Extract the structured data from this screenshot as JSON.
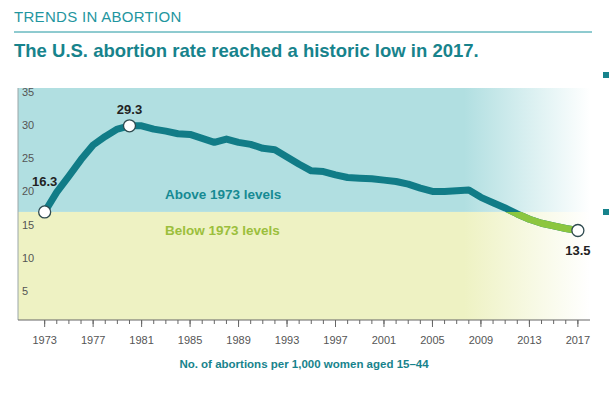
{
  "chart_data": {
    "type": "line",
    "header": "TRENDS IN ABORTION",
    "title": "The U.S. abortion rate reached a historic low in 2017.",
    "x_label": "No. of abortions per 1,000 women aged 15–44",
    "x": [
      1973,
      1974,
      1975,
      1976,
      1977,
      1978,
      1979,
      1980,
      1981,
      1982,
      1983,
      1984,
      1985,
      1986,
      1987,
      1988,
      1989,
      1990,
      1991,
      1992,
      1993,
      1994,
      1995,
      1996,
      1997,
      1998,
      1999,
      2000,
      2001,
      2002,
      2003,
      2004,
      2005,
      2006,
      2007,
      2008,
      2009,
      2010,
      2011,
      2012,
      2013,
      2014,
      2015,
      2016,
      2017
    ],
    "values": [
      16.3,
      19.3,
      21.7,
      24.2,
      26.4,
      27.7,
      28.8,
      29.3,
      29.3,
      28.8,
      28.5,
      28.1,
      28.0,
      27.4,
      26.8,
      27.3,
      26.8,
      26.5,
      25.9,
      25.7,
      24.6,
      23.5,
      22.5,
      22.4,
      21.9,
      21.5,
      21.4,
      21.3,
      21.1,
      20.9,
      20.5,
      19.9,
      19.4,
      19.4,
      19.5,
      19.6,
      18.5,
      17.7,
      16.9,
      16.0,
      15.2,
      14.6,
      14.2,
      13.8,
      13.5
    ],
    "color": "#117c87",
    "xlim": [
      1970.8,
      2018
    ],
    "xticks": [
      1973,
      1977,
      1981,
      1985,
      1989,
      1993,
      1997,
      2001,
      2005,
      2009,
      2013,
      2017
    ],
    "ylim": [
      0,
      35
    ],
    "yticks": [
      5,
      10,
      15,
      20,
      25,
      30,
      35
    ],
    "grid": false,
    "annotations": [
      {
        "text": "16.3",
        "x": 1973,
        "y": 16.3
      },
      {
        "text": "29.3",
        "x": 1980,
        "y": 29.3
      },
      {
        "text": "13.5",
        "x": 2017,
        "y": 13.5
      }
    ],
    "band_labels": [
      "Above 1973 levels",
      "Below 1973 levels"
    ]
  }
}
